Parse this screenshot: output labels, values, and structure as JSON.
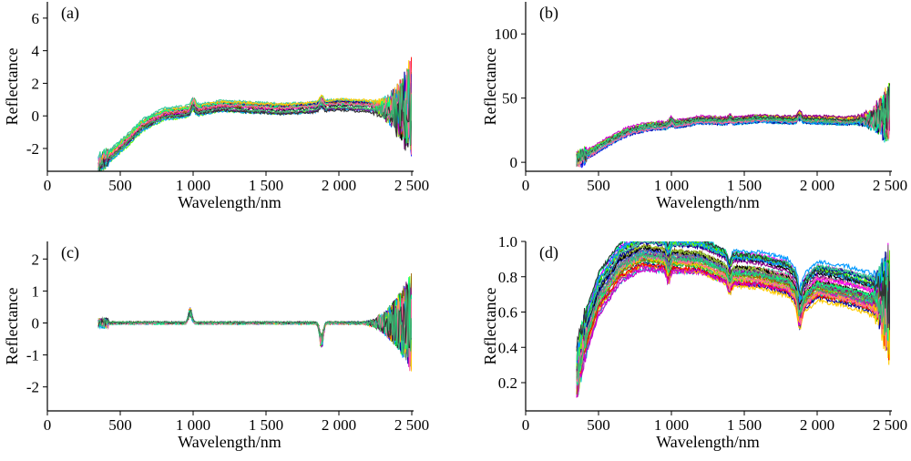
{
  "chart_data": [
    {
      "panel": "(a)",
      "type": "line",
      "xlabel": "Wavelength/nm",
      "ylabel": "Reflectance",
      "xlim": [
        0,
        2500
      ],
      "ylim": [
        -3.4,
        7
      ],
      "xticks": [
        0,
        500,
        1000,
        1500,
        2000,
        2500
      ],
      "xtick_labels": [
        "0",
        "500",
        "1 000",
        "1 500",
        "2 000",
        "2 500"
      ],
      "yticks": [
        -2,
        0,
        2,
        4,
        6
      ],
      "ytick_labels": [
        "-2",
        "0",
        "2",
        "4",
        "6"
      ],
      "x_start": 350,
      "x_end": 2500,
      "n_series": 20,
      "baseline": [
        [
          350,
          -3.0
        ],
        [
          450,
          -2.3
        ],
        [
          550,
          -1.5
        ],
        [
          650,
          -0.6
        ],
        [
          800,
          0.1
        ],
        [
          1000,
          0.3
        ],
        [
          1200,
          0.6
        ],
        [
          1400,
          0.5
        ],
        [
          1600,
          0.4
        ],
        [
          1800,
          0.5
        ],
        [
          2000,
          0.7
        ],
        [
          2200,
          0.6
        ],
        [
          2350,
          0.4
        ],
        [
          2450,
          0.3
        ],
        [
          2500,
          0.5
        ]
      ],
      "features": [
        {
          "x": 1000,
          "amp": 0.5
        },
        {
          "x": 1880,
          "amp": 0.3
        }
      ],
      "noise": {
        "base": 0.08,
        "tail_start": 2200,
        "tail_amp": 3.0
      },
      "spread": 0.35
    },
    {
      "panel": "(b)",
      "type": "line",
      "xlabel": "Wavelength/nm",
      "ylabel": "Reflectance",
      "xlim": [
        0,
        2500
      ],
      "ylim": [
        -7,
        125
      ],
      "xticks": [
        0,
        500,
        1000,
        1500,
        2000,
        2500
      ],
      "xtick_labels": [
        "0",
        "500",
        "1 000",
        "1 500",
        "2 000",
        "2 500"
      ],
      "yticks": [
        0,
        50,
        100
      ],
      "ytick_labels": [
        "0",
        "50",
        "100"
      ],
      "x_start": 350,
      "x_end": 2500,
      "n_series": 20,
      "baseline": [
        [
          350,
          2
        ],
        [
          450,
          8
        ],
        [
          550,
          15
        ],
        [
          700,
          24
        ],
        [
          850,
          28
        ],
        [
          1000,
          29
        ],
        [
          1200,
          33
        ],
        [
          1400,
          32
        ],
        [
          1600,
          34
        ],
        [
          1800,
          33
        ],
        [
          2000,
          33
        ],
        [
          2200,
          32
        ],
        [
          2350,
          33
        ],
        [
          2450,
          36
        ],
        [
          2500,
          40
        ]
      ],
      "features": [
        {
          "x": 1000,
          "amp": 3
        },
        {
          "x": 1400,
          "amp": 2
        },
        {
          "x": 1880,
          "amp": 4
        }
      ],
      "noise": {
        "base": 1.0,
        "tail_start": 2250,
        "tail_amp": 25
      },
      "spread": 3
    },
    {
      "panel": "(c)",
      "type": "line",
      "xlabel": "Wavelength/nm",
      "ylabel": "Reflectance",
      "xlim": [
        0,
        2500
      ],
      "ylim": [
        -2.75,
        2.55
      ],
      "xticks": [
        0,
        500,
        1000,
        1500,
        2000,
        2500
      ],
      "xtick_labels": [
        "0",
        "500",
        "1 000",
        "1 500",
        "2 000",
        "2 500"
      ],
      "yticks": [
        -2,
        -1,
        0,
        1,
        2
      ],
      "ytick_labels": [
        "-2",
        "-1",
        "0",
        "1",
        "2"
      ],
      "x_start": 350,
      "x_end": 2500,
      "n_series": 20,
      "baseline": [
        [
          350,
          0
        ],
        [
          2500,
          0
        ]
      ],
      "features": [
        {
          "x": 980,
          "amp": 0.35
        },
        {
          "x": 1880,
          "amp": -0.6
        }
      ],
      "noise": {
        "base": 0.03,
        "tail_start": 2150,
        "tail_amp": 1.6
      },
      "spread": 0.02
    },
    {
      "panel": "(d)",
      "type": "line",
      "xlabel": "Wavelength/nm",
      "ylabel": "Reflectance",
      "xlim": [
        0,
        2500
      ],
      "ylim": [
        0.04,
        1.0
      ],
      "xticks": [
        0,
        500,
        1000,
        1500,
        2000,
        2500
      ],
      "xtick_labels": [
        "0",
        "500",
        "1 000",
        "1 500",
        "2 000",
        "2 500"
      ],
      "yticks": [
        0.2,
        0.4,
        0.6,
        0.8,
        1.0
      ],
      "ytick_labels": [
        "0.2",
        "0.4",
        "0.6",
        "0.8",
        "1.0"
      ],
      "x_start": 350,
      "x_end": 2500,
      "n_series": 40,
      "baseline": [
        [
          350,
          0.25
        ],
        [
          400,
          0.45
        ],
        [
          500,
          0.7
        ],
        [
          650,
          0.88
        ],
        [
          800,
          0.95
        ],
        [
          1000,
          0.93
        ],
        [
          1200,
          0.92
        ],
        [
          1400,
          0.85
        ],
        [
          1600,
          0.84
        ],
        [
          1800,
          0.8
        ],
        [
          1900,
          0.7
        ],
        [
          2000,
          0.78
        ],
        [
          2200,
          0.75
        ],
        [
          2400,
          0.7
        ],
        [
          2500,
          0.65
        ]
      ],
      "features": [
        {
          "x": 980,
          "amp": -0.06
        },
        {
          "x": 1400,
          "amp": -0.05
        },
        {
          "x": 1880,
          "amp": -0.1
        }
      ],
      "noise": {
        "base": 0.012,
        "tail_start": 2350,
        "tail_amp": 0.3
      },
      "spread": 0.1
    }
  ],
  "series_colors": [
    "#1f1fff",
    "#00c000",
    "#ff00ff",
    "#000000",
    "#00c8c8",
    "#9acd32",
    "#ff0000",
    "#808080",
    "#0000a0",
    "#33cc99",
    "#cc00cc",
    "#66ff00",
    "#996600",
    "#ffcc00",
    "#0099ff",
    "#8b008b",
    "#00ff7f",
    "#ff6699",
    "#333333",
    "#3cb371"
  ]
}
